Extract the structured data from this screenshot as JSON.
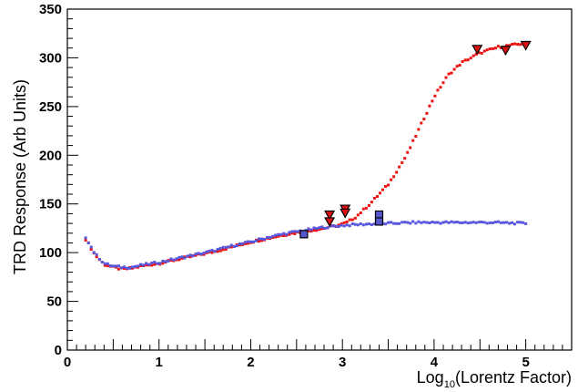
{
  "chart_data": {
    "type": "scatter",
    "title": "",
    "xlabel": "Log",
    "xlabel_sub": "10",
    "xlabel_rest": "(Lorentz Factor)",
    "ylabel": "TRD Response (Arb Units)",
    "xlim": [
      0,
      5.5
    ],
    "ylim": [
      0,
      350
    ],
    "x_ticks": [
      "0",
      "1",
      "2",
      "3",
      "4",
      "5"
    ],
    "y_ticks": [
      "0",
      "50",
      "100",
      "150",
      "200",
      "250",
      "300",
      "350"
    ],
    "grid": false,
    "legend": "none",
    "series": [
      {
        "color": "#ee1111",
        "marker": "small-square",
        "curve": [
          [
            0.2,
            114
          ],
          [
            0.3,
            98
          ],
          [
            0.4,
            88
          ],
          [
            0.5,
            85
          ],
          [
            0.6,
            83
          ],
          [
            0.7,
            84
          ],
          [
            0.8,
            86
          ],
          [
            1.0,
            89
          ],
          [
            1.2,
            93
          ],
          [
            1.4,
            97
          ],
          [
            1.6,
            101
          ],
          [
            1.8,
            106
          ],
          [
            2.0,
            111
          ],
          [
            2.2,
            115
          ],
          [
            2.4,
            119
          ],
          [
            2.6,
            122
          ],
          [
            2.8,
            125
          ],
          [
            2.95,
            128
          ],
          [
            3.05,
            131
          ],
          [
            3.15,
            137
          ],
          [
            3.3,
            150
          ],
          [
            3.5,
            170
          ],
          [
            3.7,
            200
          ],
          [
            3.85,
            230
          ],
          [
            4.0,
            260
          ],
          [
            4.15,
            282
          ],
          [
            4.3,
            295
          ],
          [
            4.5,
            305
          ],
          [
            4.7,
            311
          ],
          [
            4.85,
            313
          ],
          [
            5.0,
            315
          ]
        ]
      },
      {
        "color": "#5555dd",
        "marker": "small-square",
        "curve": [
          [
            0.2,
            116
          ],
          [
            0.3,
            99
          ],
          [
            0.4,
            89
          ],
          [
            0.5,
            86
          ],
          [
            0.6,
            85
          ],
          [
            0.7,
            85
          ],
          [
            0.8,
            87
          ],
          [
            1.0,
            90
          ],
          [
            1.2,
            94
          ],
          [
            1.4,
            98
          ],
          [
            1.6,
            102
          ],
          [
            1.8,
            107
          ],
          [
            2.0,
            111
          ],
          [
            2.2,
            116
          ],
          [
            2.4,
            120
          ],
          [
            2.6,
            123
          ],
          [
            2.8,
            126
          ],
          [
            3.0,
            128
          ],
          [
            3.2,
            129
          ],
          [
            3.5,
            130
          ],
          [
            3.8,
            131
          ],
          [
            4.2,
            131
          ],
          [
            4.6,
            131
          ],
          [
            5.0,
            130
          ]
        ]
      },
      {
        "color": "#dd1111",
        "marker": "triangle-down",
        "points": [
          [
            2.86,
            139
          ],
          [
            2.86,
            132
          ],
          [
            3.03,
            145
          ],
          [
            3.03,
            141
          ],
          [
            4.47,
            309
          ],
          [
            4.78,
            308
          ],
          [
            5.0,
            313
          ]
        ]
      },
      {
        "color": "#5555cc",
        "marker": "square",
        "points": [
          [
            2.58,
            119
          ],
          [
            3.4,
            139
          ],
          [
            3.4,
            132
          ]
        ]
      }
    ]
  }
}
